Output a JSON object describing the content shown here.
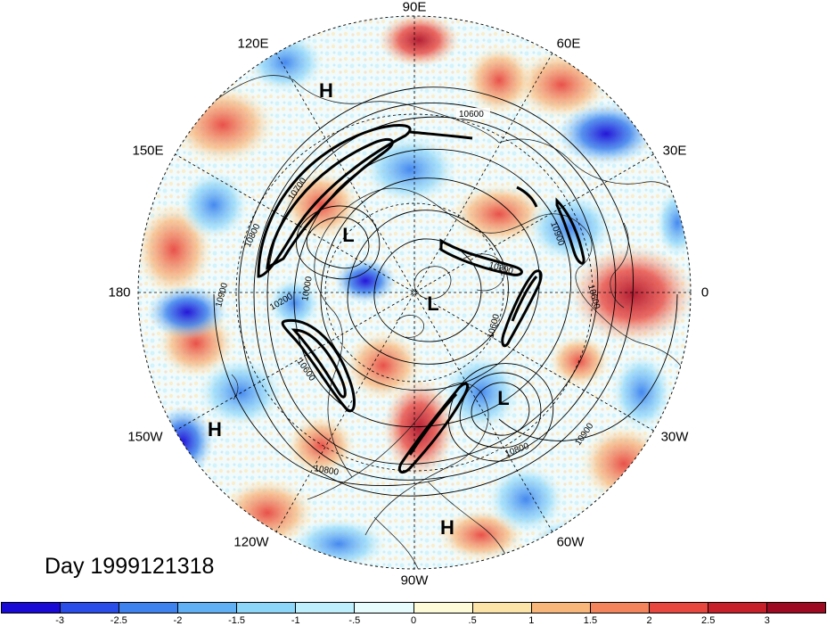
{
  "map": {
    "projection": "north-polar-stereographic",
    "longitude_labels": [
      {
        "text": "90E",
        "lon": "90E"
      },
      {
        "text": "60E",
        "lon": "60E"
      },
      {
        "text": "30E",
        "lon": "30E"
      },
      {
        "text": "0",
        "lon": "0"
      },
      {
        "text": "30W",
        "lon": "30W"
      },
      {
        "text": "60W",
        "lon": "60W"
      },
      {
        "text": "90W",
        "lon": "90W"
      },
      {
        "text": "120W",
        "lon": "120W"
      },
      {
        "text": "150W",
        "lon": "150W"
      },
      {
        "text": "180",
        "lon": "180"
      },
      {
        "text": "150E",
        "lon": "150E"
      },
      {
        "text": "120E",
        "lon": "120E"
      }
    ],
    "pressure_centers": [
      {
        "type": "H",
        "region": "Siberia"
      },
      {
        "type": "L",
        "region": "Bering Sea / East Siberia"
      },
      {
        "type": "L",
        "region": "Arctic Canada"
      },
      {
        "type": "L",
        "region": "North Atlantic"
      },
      {
        "type": "H",
        "region": "North Pacific"
      },
      {
        "type": "H",
        "region": "South America"
      }
    ],
    "contour_labels": [
      "10600",
      "10800",
      "10700",
      "10900",
      "10200",
      "10000",
      "10600",
      "10900",
      "10800",
      "10600",
      "10800",
      "10900",
      "10600",
      "10800"
    ],
    "date_text": "Day 1999121318"
  },
  "colorbar": {
    "colors": [
      "#1a0ad6",
      "#2a4ce8",
      "#3d82ee",
      "#5fb0f4",
      "#8cd6fa",
      "#bdeffc",
      "#e6fcfd",
      "#fdfbd8",
      "#fce3a8",
      "#f8b67a",
      "#f3845c",
      "#e84740",
      "#c8202a",
      "#9e0a22"
    ],
    "labels": [
      "-3",
      "-2.5",
      "-2",
      "-1.5",
      "-1",
      "-.5",
      "0",
      ".5",
      "1",
      "1.5",
      "2",
      "2.5",
      "3"
    ]
  }
}
